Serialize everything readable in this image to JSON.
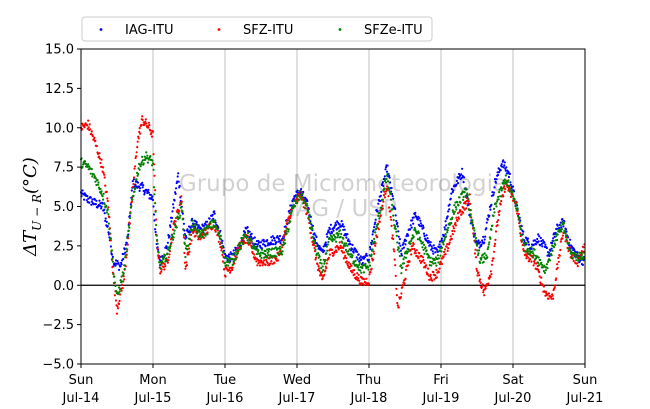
{
  "chart_data": {
    "type": "scatter",
    "ylabel": "ΔT",
    "ylabel_subscript": "U − R",
    "ylabel_unit": "(°C)",
    "ylim": [
      -5.0,
      15.0
    ],
    "yticks": [
      -5.0,
      -2.5,
      0.0,
      2.5,
      5.0,
      7.5,
      10.0,
      12.5,
      15.0
    ],
    "ytick_labels": [
      "−5.0",
      "−2.5",
      "0.0",
      "2.5",
      "5.0",
      "7.5",
      "10.0",
      "12.5",
      "15.0"
    ],
    "xlim_days": [
      0,
      7
    ],
    "xticks": [
      {
        "day": "Sun",
        "date": "Jul-14"
      },
      {
        "day": "Mon",
        "date": "Jul-15"
      },
      {
        "day": "Tue",
        "date": "Jul-16"
      },
      {
        "day": "Wed",
        "date": "Jul-17"
      },
      {
        "day": "Thu",
        "date": "Jul-18"
      },
      {
        "day": "Fri",
        "date": "Jul-19"
      },
      {
        "day": "Sat",
        "date": "Jul-20"
      },
      {
        "day": "Sun",
        "date": "Jul-21"
      }
    ],
    "grid": "vertical",
    "zero_line": true,
    "legend_position": "top-left",
    "watermark": [
      "Grupo de Micrometeorologia",
      "IAG / USP"
    ],
    "series": [
      {
        "name": "IAG-ITU",
        "color": "#0000ff",
        "keypoints": [
          [
            0.0,
            5.8
          ],
          [
            0.08,
            5.5
          ],
          [
            0.2,
            5.2
          ],
          [
            0.3,
            5.0
          ],
          [
            0.38,
            3.5
          ],
          [
            0.45,
            1.5
          ],
          [
            0.55,
            1.2
          ],
          [
            0.65,
            3.0
          ],
          [
            0.72,
            6.5
          ],
          [
            0.85,
            6.2
          ],
          [
            1.0,
            5.5
          ],
          [
            1.05,
            2.5
          ],
          [
            1.1,
            1.5
          ],
          [
            1.2,
            2.5
          ],
          [
            1.35,
            7.0
          ],
          [
            1.45,
            3.0
          ],
          [
            1.55,
            4.0
          ],
          [
            1.65,
            3.5
          ],
          [
            1.75,
            3.8
          ],
          [
            1.85,
            4.5
          ],
          [
            1.95,
            3.0
          ],
          [
            2.0,
            1.8
          ],
          [
            2.1,
            1.8
          ],
          [
            2.2,
            2.5
          ],
          [
            2.3,
            3.5
          ],
          [
            2.45,
            2.5
          ],
          [
            2.6,
            2.8
          ],
          [
            2.8,
            3.0
          ],
          [
            2.95,
            5.5
          ],
          [
            3.05,
            6.0
          ],
          [
            3.15,
            5.0
          ],
          [
            3.25,
            3.0
          ],
          [
            3.35,
            2.0
          ],
          [
            3.45,
            3.5
          ],
          [
            3.6,
            4.0
          ],
          [
            3.75,
            2.5
          ],
          [
            3.9,
            1.5
          ],
          [
            4.0,
            1.8
          ],
          [
            4.1,
            4.5
          ],
          [
            4.25,
            7.5
          ],
          [
            4.35,
            5.0
          ],
          [
            4.45,
            2.0
          ],
          [
            4.55,
            3.5
          ],
          [
            4.65,
            4.5
          ],
          [
            4.75,
            3.5
          ],
          [
            4.85,
            2.5
          ],
          [
            4.95,
            2.0
          ],
          [
            5.05,
            3.5
          ],
          [
            5.15,
            6.0
          ],
          [
            5.3,
            7.2
          ],
          [
            5.4,
            4.5
          ],
          [
            5.5,
            2.5
          ],
          [
            5.6,
            3.0
          ],
          [
            5.75,
            6.5
          ],
          [
            5.85,
            7.8
          ],
          [
            5.95,
            7.0
          ],
          [
            6.05,
            5.0
          ],
          [
            6.15,
            3.0
          ],
          [
            6.25,
            2.5
          ],
          [
            6.35,
            3.0
          ],
          [
            6.5,
            2.0
          ],
          [
            6.6,
            3.5
          ],
          [
            6.7,
            4.0
          ],
          [
            6.8,
            2.5
          ],
          [
            6.9,
            1.8
          ],
          [
            7.0,
            1.5
          ]
        ]
      },
      {
        "name": "SFZ-ITU",
        "color": "#ff0000",
        "keypoints": [
          [
            0.0,
            10.0
          ],
          [
            0.1,
            10.2
          ],
          [
            0.2,
            9.0
          ],
          [
            0.3,
            7.5
          ],
          [
            0.38,
            5.0
          ],
          [
            0.45,
            0.5
          ],
          [
            0.5,
            -1.5
          ],
          [
            0.6,
            0.5
          ],
          [
            0.7,
            5.0
          ],
          [
            0.78,
            9.0
          ],
          [
            0.85,
            10.5
          ],
          [
            0.95,
            10.0
          ],
          [
            1.0,
            9.5
          ],
          [
            1.05,
            3.0
          ],
          [
            1.1,
            1.0
          ],
          [
            1.2,
            1.5
          ],
          [
            1.3,
            4.0
          ],
          [
            1.4,
            5.5
          ],
          [
            1.45,
            1.0
          ],
          [
            1.55,
            3.5
          ],
          [
            1.65,
            3.0
          ],
          [
            1.75,
            3.5
          ],
          [
            1.85,
            4.0
          ],
          [
            1.95,
            2.5
          ],
          [
            2.0,
            0.8
          ],
          [
            2.1,
            1.2
          ],
          [
            2.2,
            2.5
          ],
          [
            2.3,
            3.0
          ],
          [
            2.45,
            1.5
          ],
          [
            2.6,
            1.5
          ],
          [
            2.75,
            1.8
          ],
          [
            2.9,
            4.5
          ],
          [
            3.05,
            5.8
          ],
          [
            3.15,
            4.5
          ],
          [
            3.25,
            2.0
          ],
          [
            3.35,
            0.2
          ],
          [
            3.45,
            2.0
          ],
          [
            3.6,
            2.5
          ],
          [
            3.75,
            1.0
          ],
          [
            3.9,
            0.2
          ],
          [
            4.0,
            0.3
          ],
          [
            4.1,
            3.0
          ],
          [
            4.25,
            6.5
          ],
          [
            4.35,
            2.0
          ],
          [
            4.4,
            -1.5
          ],
          [
            4.5,
            0.5
          ],
          [
            4.6,
            2.5
          ],
          [
            4.75,
            1.5
          ],
          [
            4.85,
            0.5
          ],
          [
            4.95,
            0.8
          ],
          [
            5.1,
            2.5
          ],
          [
            5.25,
            4.5
          ],
          [
            5.4,
            5.5
          ],
          [
            5.5,
            1.0
          ],
          [
            5.6,
            -0.5
          ],
          [
            5.7,
            1.0
          ],
          [
            5.8,
            4.5
          ],
          [
            5.9,
            6.5
          ],
          [
            6.05,
            5.0
          ],
          [
            6.15,
            2.0
          ],
          [
            6.3,
            1.5
          ],
          [
            6.45,
            -0.5
          ],
          [
            6.55,
            -0.8
          ],
          [
            6.7,
            3.5
          ],
          [
            6.8,
            2.0
          ],
          [
            6.9,
            1.5
          ],
          [
            7.0,
            2.5
          ]
        ]
      },
      {
        "name": "SFZe-ITU",
        "color": "#008000",
        "keypoints": [
          [
            0.0,
            7.8
          ],
          [
            0.1,
            7.5
          ],
          [
            0.2,
            6.8
          ],
          [
            0.3,
            5.8
          ],
          [
            0.38,
            4.5
          ],
          [
            0.45,
            1.0
          ],
          [
            0.5,
            -0.8
          ],
          [
            0.6,
            1.0
          ],
          [
            0.7,
            5.0
          ],
          [
            0.8,
            7.5
          ],
          [
            0.9,
            8.2
          ],
          [
            1.0,
            7.8
          ],
          [
            1.05,
            3.0
          ],
          [
            1.1,
            1.2
          ],
          [
            1.2,
            2.0
          ],
          [
            1.3,
            3.5
          ],
          [
            1.4,
            5.0
          ],
          [
            1.45,
            2.0
          ],
          [
            1.55,
            3.8
          ],
          [
            1.65,
            3.2
          ],
          [
            1.75,
            3.5
          ],
          [
            1.85,
            4.0
          ],
          [
            1.95,
            2.8
          ],
          [
            2.0,
            1.5
          ],
          [
            2.1,
            1.5
          ],
          [
            2.2,
            2.5
          ],
          [
            2.3,
            3.2
          ],
          [
            2.45,
            2.0
          ],
          [
            2.6,
            2.0
          ],
          [
            2.8,
            2.2
          ],
          [
            2.95,
            5.0
          ],
          [
            3.05,
            5.8
          ],
          [
            3.15,
            4.8
          ],
          [
            3.25,
            2.5
          ],
          [
            3.35,
            1.0
          ],
          [
            3.45,
            2.8
          ],
          [
            3.6,
            3.2
          ],
          [
            3.75,
            1.8
          ],
          [
            3.9,
            1.0
          ],
          [
            4.0,
            1.2
          ],
          [
            4.1,
            3.5
          ],
          [
            4.25,
            7.0
          ],
          [
            4.35,
            4.0
          ],
          [
            4.45,
            1.0
          ],
          [
            4.55,
            2.5
          ],
          [
            4.65,
            3.5
          ],
          [
            4.75,
            2.5
          ],
          [
            4.85,
            1.5
          ],
          [
            4.95,
            1.5
          ],
          [
            5.05,
            3.0
          ],
          [
            5.2,
            5.0
          ],
          [
            5.35,
            6.0
          ],
          [
            5.45,
            3.5
          ],
          [
            5.55,
            1.5
          ],
          [
            5.65,
            2.0
          ],
          [
            5.75,
            5.0
          ],
          [
            5.9,
            6.8
          ],
          [
            6.05,
            5.0
          ],
          [
            6.15,
            2.5
          ],
          [
            6.3,
            2.0
          ],
          [
            6.45,
            1.0
          ],
          [
            6.6,
            3.0
          ],
          [
            6.7,
            3.8
          ],
          [
            6.8,
            2.0
          ],
          [
            6.9,
            1.8
          ],
          [
            7.0,
            2.0
          ]
        ]
      }
    ]
  }
}
